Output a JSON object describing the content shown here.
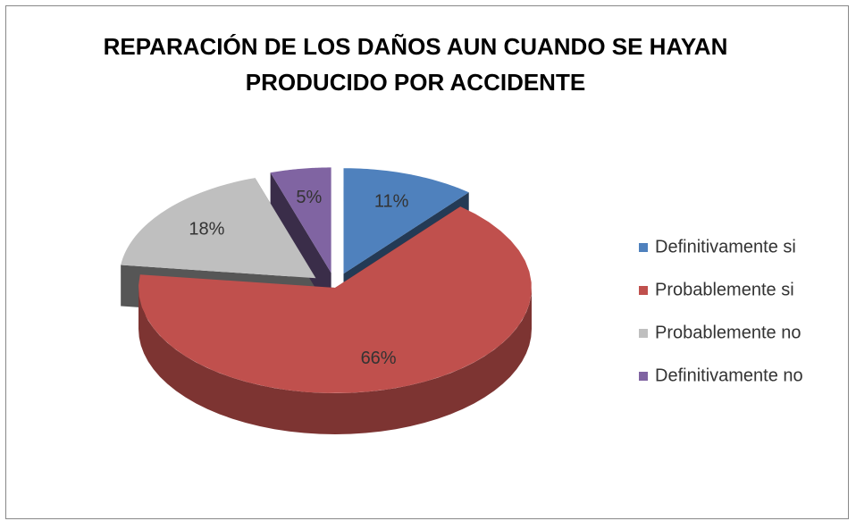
{
  "chart_data": {
    "type": "pie",
    "title": "REPARACIÓN DE LOS DAÑOS AUN CUANDO SE HAYAN PRODUCIDO POR ACCIDENTE",
    "categories": [
      "Definitivamente si",
      "Probablemente si",
      "Probablemente no",
      "Definitivamente no"
    ],
    "values": [
      11,
      66,
      18,
      5
    ],
    "value_labels": [
      "11%",
      "66%",
      "18%",
      "5%"
    ],
    "colors": [
      "#4f81bd",
      "#c0504d",
      "#bfbfbf",
      "#8064a2"
    ],
    "legend": "right"
  }
}
